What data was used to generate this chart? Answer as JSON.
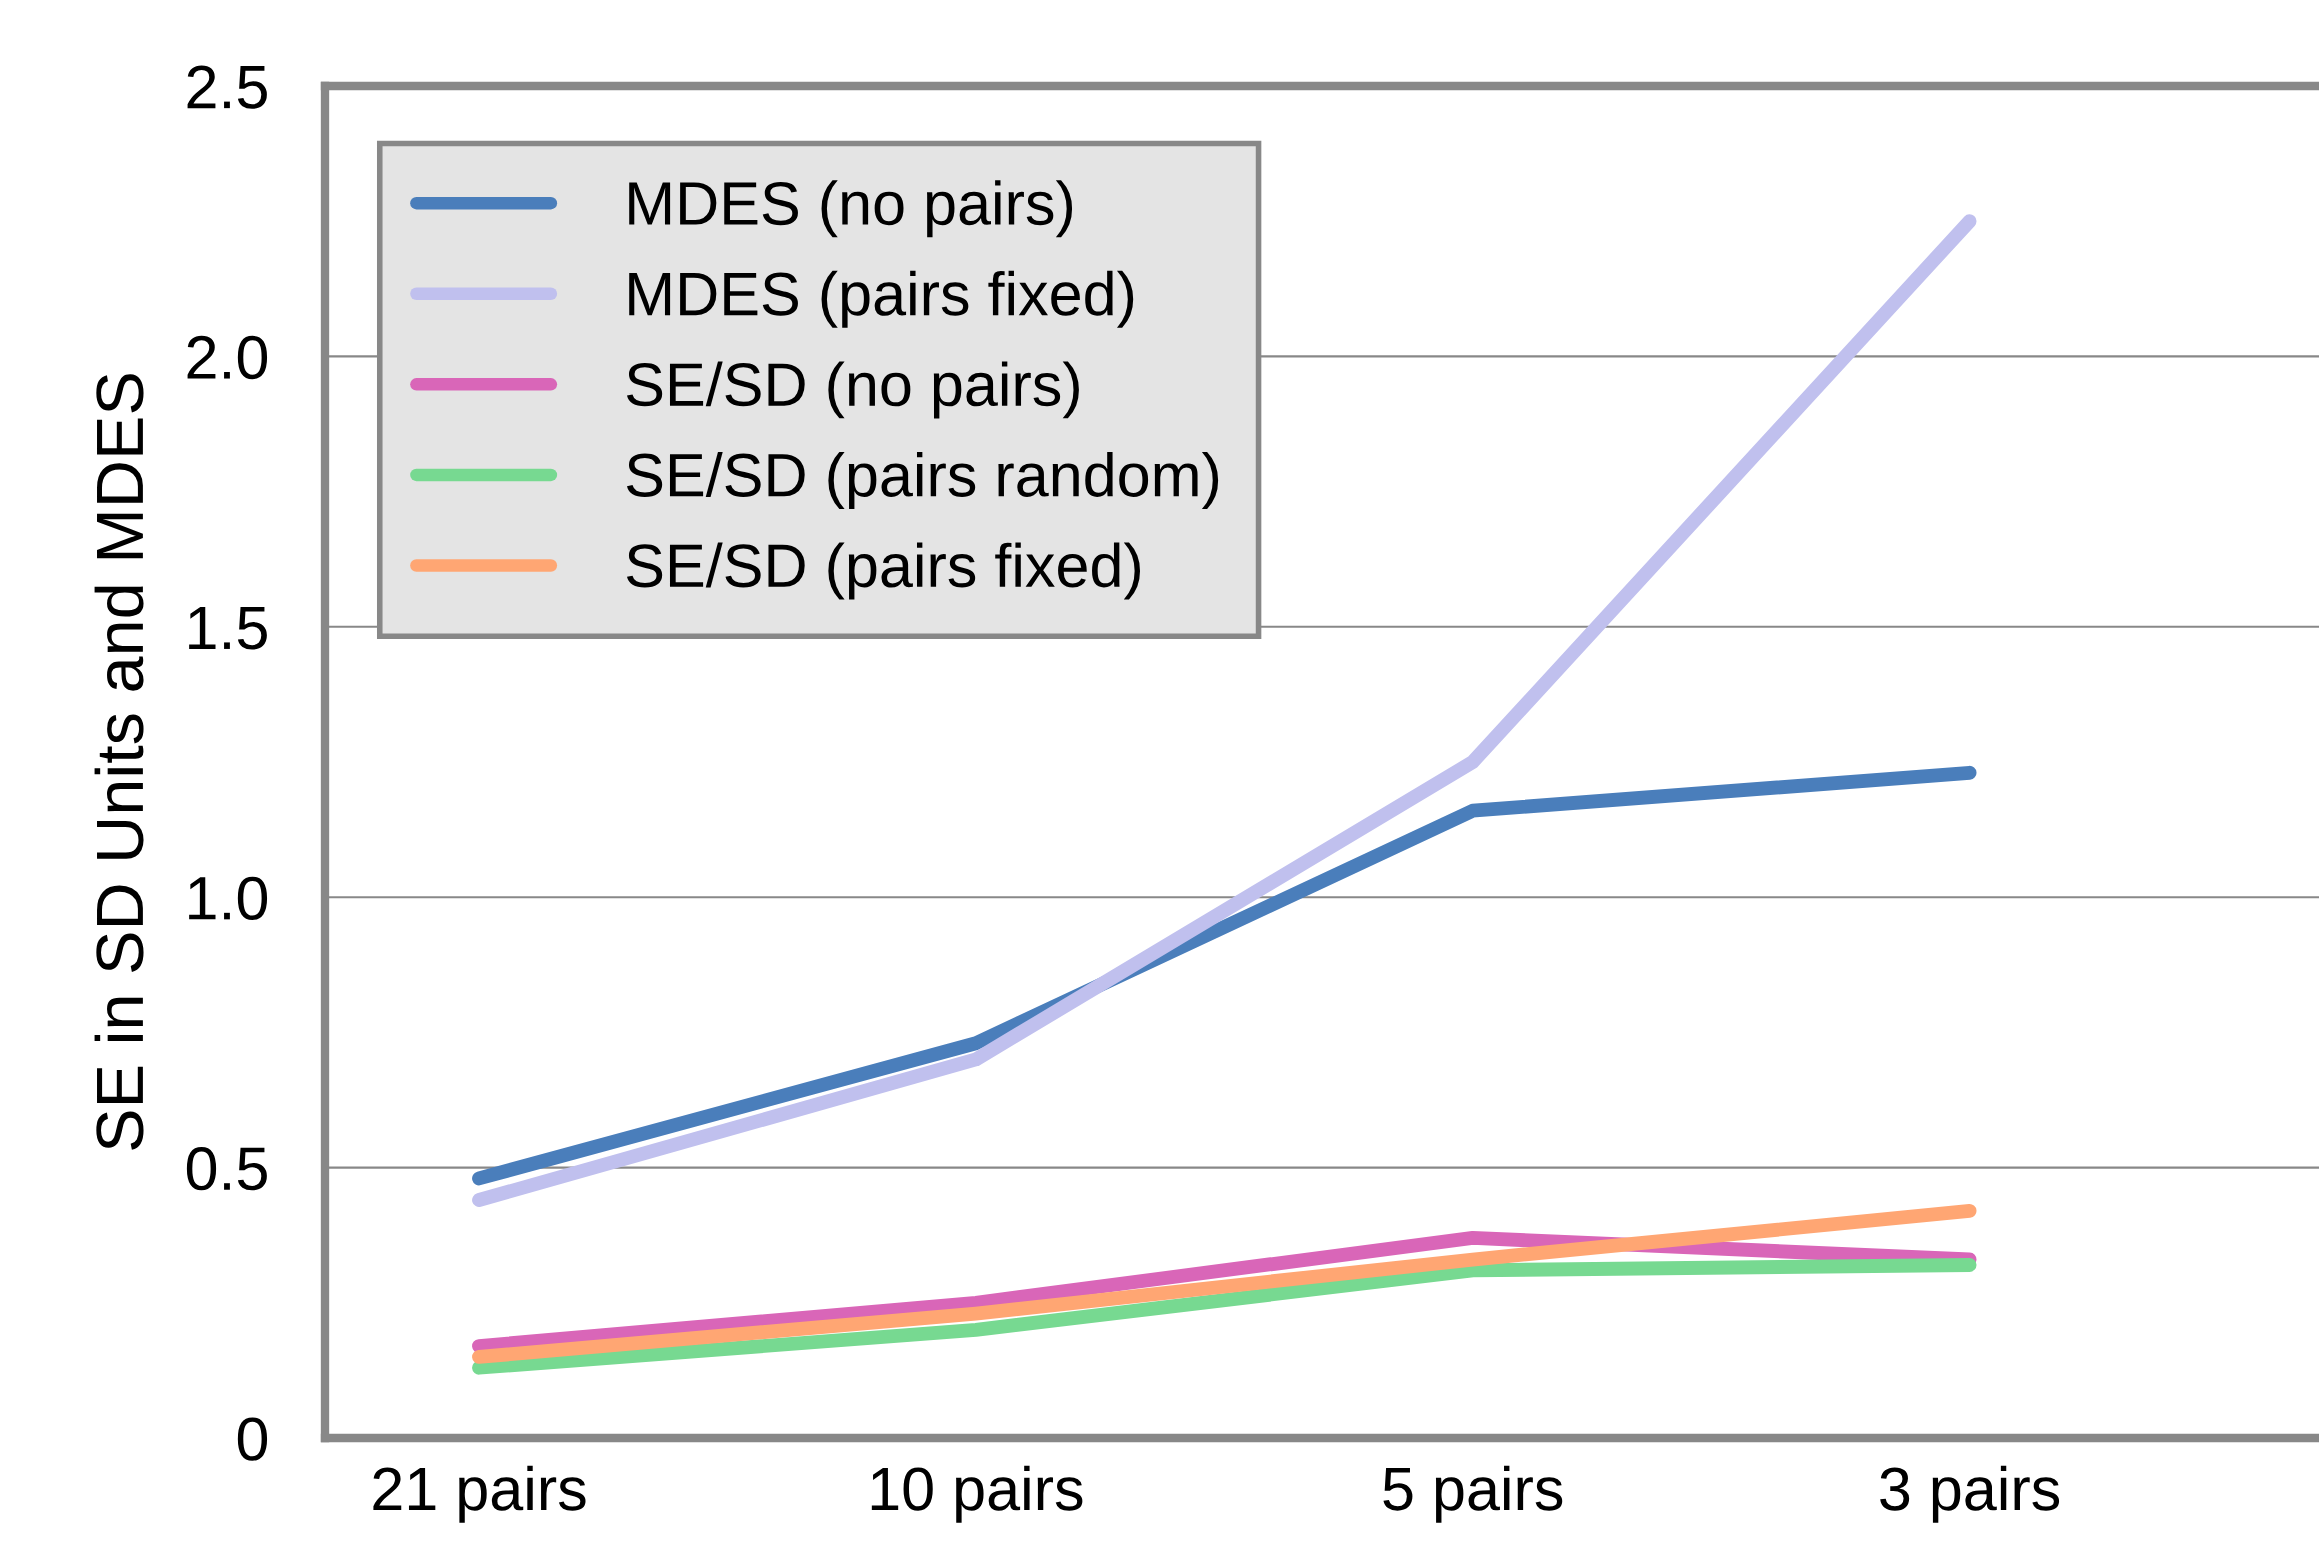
{
  "chart_data": {
    "type": "line",
    "ylabel": "SE in SD Units and MDES",
    "categories": [
      "21 pairs",
      "10 pairs",
      "5 pairs",
      "3 pairs"
    ],
    "series": [
      {
        "name": "MDES (no pairs)",
        "color": "#4a7ebb",
        "values": [
          0.48,
          0.73,
          1.16,
          1.23
        ]
      },
      {
        "name": "MDES (pairs fixed)",
        "color": "#c0c0ee",
        "values": [
          0.44,
          0.7,
          1.25,
          2.25
        ]
      },
      {
        "name": "SE/SD (no pairs)",
        "color": "#d966b8",
        "values": [
          0.17,
          0.25,
          0.37,
          0.33
        ]
      },
      {
        "name": "SE/SD (pairs random)",
        "color": "#77d991",
        "values": [
          0.13,
          0.2,
          0.31,
          0.32
        ]
      },
      {
        "name": "SE/SD (pairs fixed)",
        "color": "#ffa673",
        "values": [
          0.15,
          0.23,
          0.33,
          0.42
        ]
      }
    ],
    "ylim": [
      0,
      2.5
    ],
    "yticks": [
      0,
      {
        "value": 0.5,
        "label": "0.5"
      },
      {
        "value": 1,
        "label": "1.0"
      },
      {
        "value": 1.5,
        "label": "1.5"
      },
      {
        "value": 2,
        "label": "2.0"
      },
      {
        "value": 2.5,
        "label": "2.5"
      }
    ],
    "grid": "y",
    "legend": "top left",
    "line_style": "solid"
  }
}
